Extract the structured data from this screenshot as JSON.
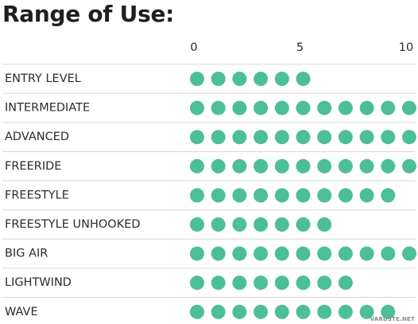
{
  "chart_data": {
    "type": "dot-rating",
    "title": "Range of Use:",
    "x_ticks": [
      "0",
      "5",
      "10"
    ],
    "xlim": [
      0,
      10
    ],
    "dot_color": "#4dbe9a",
    "categories": [
      "ENTRY LEVEL",
      "INTERMEDIATE",
      "ADVANCED",
      "FREERIDE",
      "FREESTYLE",
      "FREESTYLE UNHOOKED",
      "BIG AIR",
      "LIGHTWIND",
      "WAVE"
    ],
    "values": [
      6,
      11,
      11,
      11,
      10,
      7,
      11,
      8,
      10
    ]
  },
  "watermark": "VARUSTE.NET"
}
